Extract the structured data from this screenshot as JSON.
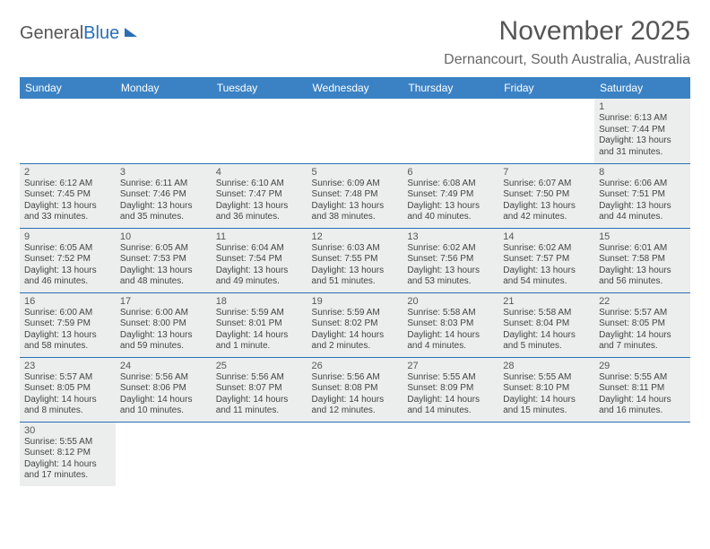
{
  "logo": {
    "part1": "General",
    "part2": "Blue"
  },
  "title": "November 2025",
  "location": "Dernancourt, South Australia, Australia",
  "day_headers": [
    "Sunday",
    "Monday",
    "Tuesday",
    "Wednesday",
    "Thursday",
    "Friday",
    "Saturday"
  ],
  "colors": {
    "header_bg": "#3b82c4",
    "cell_bg": "#eceeee",
    "border": "#2a6fb5"
  },
  "weeks": [
    [
      null,
      null,
      null,
      null,
      null,
      null,
      {
        "n": "1",
        "sr": "Sunrise: 6:13 AM",
        "ss": "Sunset: 7:44 PM",
        "d1": "Daylight: 13 hours",
        "d2": "and 31 minutes."
      }
    ],
    [
      {
        "n": "2",
        "sr": "Sunrise: 6:12 AM",
        "ss": "Sunset: 7:45 PM",
        "d1": "Daylight: 13 hours",
        "d2": "and 33 minutes."
      },
      {
        "n": "3",
        "sr": "Sunrise: 6:11 AM",
        "ss": "Sunset: 7:46 PM",
        "d1": "Daylight: 13 hours",
        "d2": "and 35 minutes."
      },
      {
        "n": "4",
        "sr": "Sunrise: 6:10 AM",
        "ss": "Sunset: 7:47 PM",
        "d1": "Daylight: 13 hours",
        "d2": "and 36 minutes."
      },
      {
        "n": "5",
        "sr": "Sunrise: 6:09 AM",
        "ss": "Sunset: 7:48 PM",
        "d1": "Daylight: 13 hours",
        "d2": "and 38 minutes."
      },
      {
        "n": "6",
        "sr": "Sunrise: 6:08 AM",
        "ss": "Sunset: 7:49 PM",
        "d1": "Daylight: 13 hours",
        "d2": "and 40 minutes."
      },
      {
        "n": "7",
        "sr": "Sunrise: 6:07 AM",
        "ss": "Sunset: 7:50 PM",
        "d1": "Daylight: 13 hours",
        "d2": "and 42 minutes."
      },
      {
        "n": "8",
        "sr": "Sunrise: 6:06 AM",
        "ss": "Sunset: 7:51 PM",
        "d1": "Daylight: 13 hours",
        "d2": "and 44 minutes."
      }
    ],
    [
      {
        "n": "9",
        "sr": "Sunrise: 6:05 AM",
        "ss": "Sunset: 7:52 PM",
        "d1": "Daylight: 13 hours",
        "d2": "and 46 minutes."
      },
      {
        "n": "10",
        "sr": "Sunrise: 6:05 AM",
        "ss": "Sunset: 7:53 PM",
        "d1": "Daylight: 13 hours",
        "d2": "and 48 minutes."
      },
      {
        "n": "11",
        "sr": "Sunrise: 6:04 AM",
        "ss": "Sunset: 7:54 PM",
        "d1": "Daylight: 13 hours",
        "d2": "and 49 minutes."
      },
      {
        "n": "12",
        "sr": "Sunrise: 6:03 AM",
        "ss": "Sunset: 7:55 PM",
        "d1": "Daylight: 13 hours",
        "d2": "and 51 minutes."
      },
      {
        "n": "13",
        "sr": "Sunrise: 6:02 AM",
        "ss": "Sunset: 7:56 PM",
        "d1": "Daylight: 13 hours",
        "d2": "and 53 minutes."
      },
      {
        "n": "14",
        "sr": "Sunrise: 6:02 AM",
        "ss": "Sunset: 7:57 PM",
        "d1": "Daylight: 13 hours",
        "d2": "and 54 minutes."
      },
      {
        "n": "15",
        "sr": "Sunrise: 6:01 AM",
        "ss": "Sunset: 7:58 PM",
        "d1": "Daylight: 13 hours",
        "d2": "and 56 minutes."
      }
    ],
    [
      {
        "n": "16",
        "sr": "Sunrise: 6:00 AM",
        "ss": "Sunset: 7:59 PM",
        "d1": "Daylight: 13 hours",
        "d2": "and 58 minutes."
      },
      {
        "n": "17",
        "sr": "Sunrise: 6:00 AM",
        "ss": "Sunset: 8:00 PM",
        "d1": "Daylight: 13 hours",
        "d2": "and 59 minutes."
      },
      {
        "n": "18",
        "sr": "Sunrise: 5:59 AM",
        "ss": "Sunset: 8:01 PM",
        "d1": "Daylight: 14 hours",
        "d2": "and 1 minute."
      },
      {
        "n": "19",
        "sr": "Sunrise: 5:59 AM",
        "ss": "Sunset: 8:02 PM",
        "d1": "Daylight: 14 hours",
        "d2": "and 2 minutes."
      },
      {
        "n": "20",
        "sr": "Sunrise: 5:58 AM",
        "ss": "Sunset: 8:03 PM",
        "d1": "Daylight: 14 hours",
        "d2": "and 4 minutes."
      },
      {
        "n": "21",
        "sr": "Sunrise: 5:58 AM",
        "ss": "Sunset: 8:04 PM",
        "d1": "Daylight: 14 hours",
        "d2": "and 5 minutes."
      },
      {
        "n": "22",
        "sr": "Sunrise: 5:57 AM",
        "ss": "Sunset: 8:05 PM",
        "d1": "Daylight: 14 hours",
        "d2": "and 7 minutes."
      }
    ],
    [
      {
        "n": "23",
        "sr": "Sunrise: 5:57 AM",
        "ss": "Sunset: 8:05 PM",
        "d1": "Daylight: 14 hours",
        "d2": "and 8 minutes."
      },
      {
        "n": "24",
        "sr": "Sunrise: 5:56 AM",
        "ss": "Sunset: 8:06 PM",
        "d1": "Daylight: 14 hours",
        "d2": "and 10 minutes."
      },
      {
        "n": "25",
        "sr": "Sunrise: 5:56 AM",
        "ss": "Sunset: 8:07 PM",
        "d1": "Daylight: 14 hours",
        "d2": "and 11 minutes."
      },
      {
        "n": "26",
        "sr": "Sunrise: 5:56 AM",
        "ss": "Sunset: 8:08 PM",
        "d1": "Daylight: 14 hours",
        "d2": "and 12 minutes."
      },
      {
        "n": "27",
        "sr": "Sunrise: 5:55 AM",
        "ss": "Sunset: 8:09 PM",
        "d1": "Daylight: 14 hours",
        "d2": "and 14 minutes."
      },
      {
        "n": "28",
        "sr": "Sunrise: 5:55 AM",
        "ss": "Sunset: 8:10 PM",
        "d1": "Daylight: 14 hours",
        "d2": "and 15 minutes."
      },
      {
        "n": "29",
        "sr": "Sunrise: 5:55 AM",
        "ss": "Sunset: 8:11 PM",
        "d1": "Daylight: 14 hours",
        "d2": "and 16 minutes."
      }
    ],
    [
      {
        "n": "30",
        "sr": "Sunrise: 5:55 AM",
        "ss": "Sunset: 8:12 PM",
        "d1": "Daylight: 14 hours",
        "d2": "and 17 minutes."
      },
      null,
      null,
      null,
      null,
      null,
      null
    ]
  ]
}
